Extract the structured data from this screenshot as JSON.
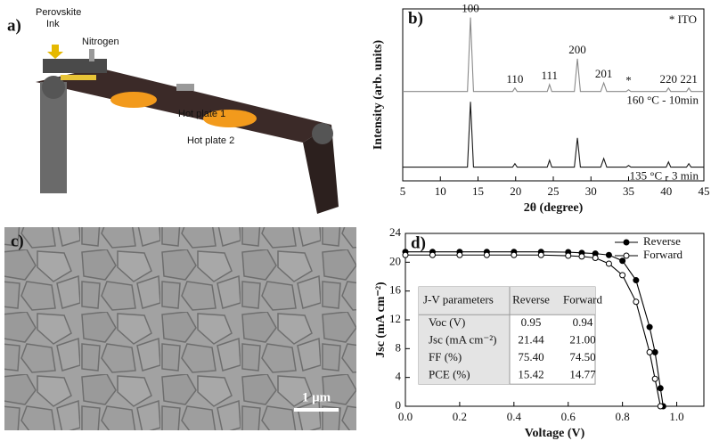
{
  "panels": {
    "a": {
      "label": "a)",
      "texts": [
        "Perovskite",
        "Ink",
        "Nitrogen",
        "Hot plate 1",
        "Hot plate 2"
      ]
    },
    "c": {
      "label": "c)",
      "scale_bar": "1 μm"
    }
  },
  "chart_data": [
    {
      "type": "line",
      "panel_label": "b)",
      "note": "* ITO",
      "xlabel": "2θ (degree)",
      "ylabel": "Intensity (arb. units)",
      "xlim": [
        5,
        45
      ],
      "xticks": [
        5,
        10,
        15,
        20,
        25,
        30,
        35,
        40,
        45
      ],
      "ylim": [
        0,
        100
      ],
      "x": [
        5,
        13.6,
        14,
        14.4,
        19.6,
        19.9,
        20.2,
        24.2,
        24.5,
        24.8,
        27.8,
        28.2,
        28.6,
        31.3,
        31.7,
        32.1,
        34.7,
        35,
        35.3,
        40,
        40.3,
        40.6,
        42.7,
        43,
        43.3,
        45
      ],
      "series": [
        {
          "name": "160 °C - 10min",
          "color": "#8a8a8a",
          "values": [
            52,
            52,
            95,
            52,
            52,
            54,
            52,
            52,
            56,
            52,
            52,
            71,
            52,
            52,
            57,
            52,
            52,
            53,
            52,
            52,
            54,
            52,
            52,
            54,
            52,
            52
          ]
        },
        {
          "name": "135 °C - 3 min",
          "color": "#1a1a1a",
          "values": [
            8,
            8,
            46,
            8,
            8,
            10,
            8,
            8,
            12,
            8,
            8,
            25,
            8,
            8,
            13,
            8,
            8,
            9,
            8,
            8,
            11,
            8,
            8,
            10,
            8,
            8
          ]
        }
      ],
      "annotations": [
        {
          "text": "100",
          "x": 14
        },
        {
          "text": "110",
          "x": 19.9
        },
        {
          "text": "111",
          "x": 24.5
        },
        {
          "text": "200",
          "x": 28.2
        },
        {
          "text": "201",
          "x": 31.7
        },
        {
          "text": "*",
          "x": 35
        },
        {
          "text": "220",
          "x": 40.3
        },
        {
          "text": "221",
          "x": 43
        }
      ]
    },
    {
      "type": "line",
      "panel_label": "d)",
      "legend": "upper right",
      "xlabel": "Voltage (V)",
      "ylabel": "Jsc (mA cm⁻²)",
      "xlim": [
        0,
        1.1
      ],
      "xticks": [
        {
          "value": 0,
          "label": "0.0"
        },
        0.2,
        0.4,
        0.6,
        0.8,
        {
          "value": 1,
          "label": "1.0"
        }
      ],
      "ylim": [
        0,
        24
      ],
      "yticks": [
        0,
        4,
        8,
        12,
        16,
        20,
        24
      ],
      "x": [
        0,
        0.1,
        0.2,
        0.3,
        0.4,
        0.5,
        0.6,
        0.65,
        0.7,
        0.75,
        0.8,
        0.85,
        0.9,
        0.92,
        0.94,
        0.95
      ],
      "series": [
        {
          "name": "Reverse",
          "color": "#000000",
          "marker": "filled",
          "values": [
            21.44,
            21.44,
            21.44,
            21.44,
            21.44,
            21.44,
            21.4,
            21.3,
            21.2,
            21.0,
            20.2,
            17.5,
            11,
            7.5,
            2.5,
            0
          ]
        },
        {
          "name": "Forward",
          "color": "#000000",
          "marker": "open",
          "values": [
            21.0,
            21.0,
            21.0,
            21.0,
            21.0,
            21.0,
            20.9,
            20.8,
            20.6,
            19.8,
            18.2,
            14.5,
            7.5,
            3.8,
            0,
            null
          ]
        }
      ],
      "table": {
        "header": [
          "J-V parameters",
          "Reverse",
          "Forward"
        ],
        "rows": [
          [
            "Voc (V)",
            "0.95",
            "0.94"
          ],
          [
            "Jsc (mA cm⁻²)",
            "21.44",
            "21.00"
          ],
          [
            "FF (%)",
            "75.40",
            "74.50"
          ],
          [
            "PCE (%)",
            "15.42",
            "14.77"
          ]
        ]
      }
    }
  ]
}
